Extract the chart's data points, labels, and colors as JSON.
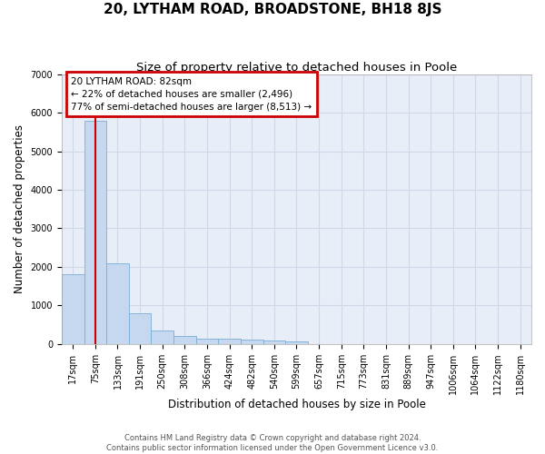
{
  "title": "20, LYTHAM ROAD, BROADSTONE, BH18 8JS",
  "subtitle": "Size of property relative to detached houses in Poole",
  "xlabel": "Distribution of detached houses by size in Poole",
  "ylabel": "Number of detached properties",
  "footer_line1": "Contains HM Land Registry data © Crown copyright and database right 2024.",
  "footer_line2": "Contains public sector information licensed under the Open Government Licence v3.0.",
  "categories": [
    "17sqm",
    "75sqm",
    "133sqm",
    "191sqm",
    "250sqm",
    "308sqm",
    "366sqm",
    "424sqm",
    "482sqm",
    "540sqm",
    "599sqm",
    "657sqm",
    "715sqm",
    "773sqm",
    "831sqm",
    "889sqm",
    "947sqm",
    "1006sqm",
    "1064sqm",
    "1122sqm",
    "1180sqm"
  ],
  "values": [
    1800,
    5800,
    2080,
    800,
    350,
    210,
    140,
    125,
    105,
    80,
    75,
    0,
    0,
    0,
    0,
    0,
    0,
    0,
    0,
    0,
    0
  ],
  "bar_color": "#c5d8f0",
  "bar_edge_color": "#7badd4",
  "background_color": "#e8eef8",
  "grid_color": "#d0d8e8",
  "annotation_text_line1": "20 LYTHAM ROAD: 82sqm",
  "annotation_text_line2": "← 22% of detached houses are smaller (2,496)",
  "annotation_text_line3": "77% of semi-detached houses are larger (8,513) →",
  "vline_color": "#cc0000",
  "vline_x": 1.0,
  "annotation_box_color": "#cc0000",
  "ylim": [
    0,
    7000
  ],
  "yticks": [
    0,
    1000,
    2000,
    3000,
    4000,
    5000,
    6000,
    7000
  ],
  "title_fontsize": 11,
  "subtitle_fontsize": 9.5,
  "axis_label_fontsize": 8.5,
  "tick_fontsize": 7,
  "annotation_fontsize": 7.5,
  "fig_width": 6.0,
  "fig_height": 5.0
}
